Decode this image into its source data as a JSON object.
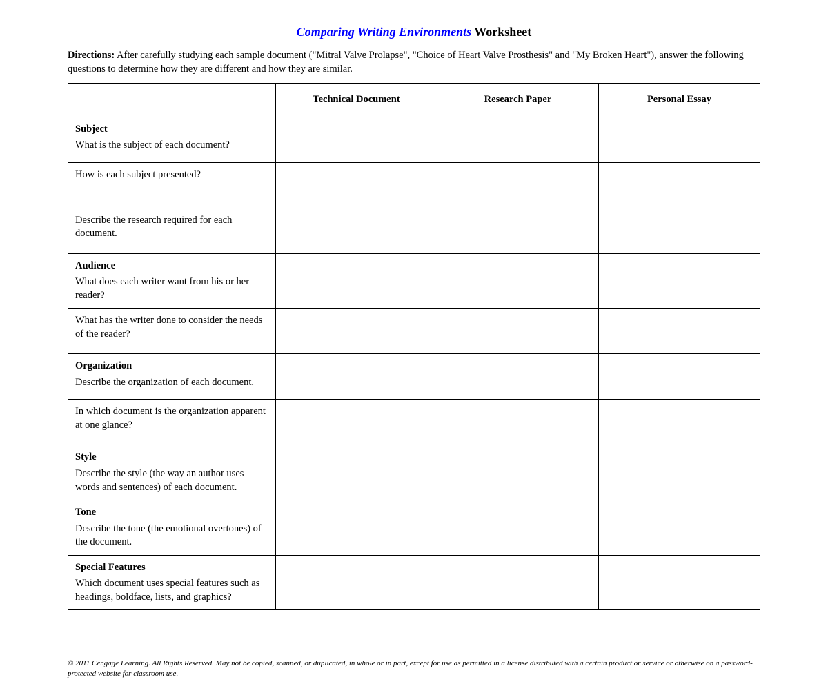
{
  "title": {
    "italic_part": "Comparing Writing Environments",
    "plain_part": " Worksheet"
  },
  "directions": {
    "label": "Directions:",
    "text": " After carefully studying each sample document (\"Mitral Valve Prolapse\", \"Choice of Heart Valve Prosthesis\" and \"My Broken Heart\"), answer the following questions to determine how they are different and how they are similar."
  },
  "table": {
    "columns": [
      "",
      "Technical Document",
      "Research Paper",
      "Personal Essay"
    ],
    "col_widths_pct": [
      30,
      23.33,
      23.33,
      23.33
    ],
    "border_color": "#000000",
    "rows": [
      {
        "heading": "Subject",
        "question": "What is the subject of each document?",
        "cells": [
          "",
          "",
          ""
        ]
      },
      {
        "heading": "",
        "question": "How is each subject presented?",
        "cells": [
          "",
          "",
          ""
        ]
      },
      {
        "heading": "",
        "question": "Describe the research required for each document.",
        "cells": [
          "",
          "",
          ""
        ]
      },
      {
        "heading": "Audience",
        "question": "What does each writer want from his or her reader?",
        "cells": [
          "",
          "",
          ""
        ]
      },
      {
        "heading": "",
        "question": "What has the writer done to consider the needs of the reader?",
        "cells": [
          "",
          "",
          ""
        ]
      },
      {
        "heading": "Organization",
        "question": "Describe the organization of each document.",
        "cells": [
          "",
          "",
          ""
        ]
      },
      {
        "heading": "",
        "question": "In which document is the organization apparent at one glance?",
        "cells": [
          "",
          "",
          ""
        ]
      },
      {
        "heading": "Style",
        "question": "Describe the style (the way an author uses words and sentences) of each document.",
        "cells": [
          "",
          "",
          ""
        ]
      },
      {
        "heading": "Tone",
        "question": "Describe the tone (the emotional overtones) of the document.",
        "cells": [
          "",
          "",
          ""
        ]
      },
      {
        "heading": "Special Features",
        "question": "Which document uses special features such as headings, boldface, lists, and graphics?",
        "cells": [
          "",
          "",
          ""
        ]
      }
    ]
  },
  "footer": "© 2011 Cengage Learning. All Rights Reserved. May not be copied, scanned, or duplicated, in whole or in part, except for use as permitted in a license distributed with a certain product or service or otherwise on a password-protected website for classroom use.",
  "colors": {
    "title_accent": "#0000ff",
    "text": "#000000",
    "background": "#ffffff",
    "border": "#000000"
  },
  "typography": {
    "base_font": "Times New Roman",
    "title_fontsize_pt": 14,
    "body_fontsize_pt": 11,
    "footer_fontsize_pt": 8
  }
}
